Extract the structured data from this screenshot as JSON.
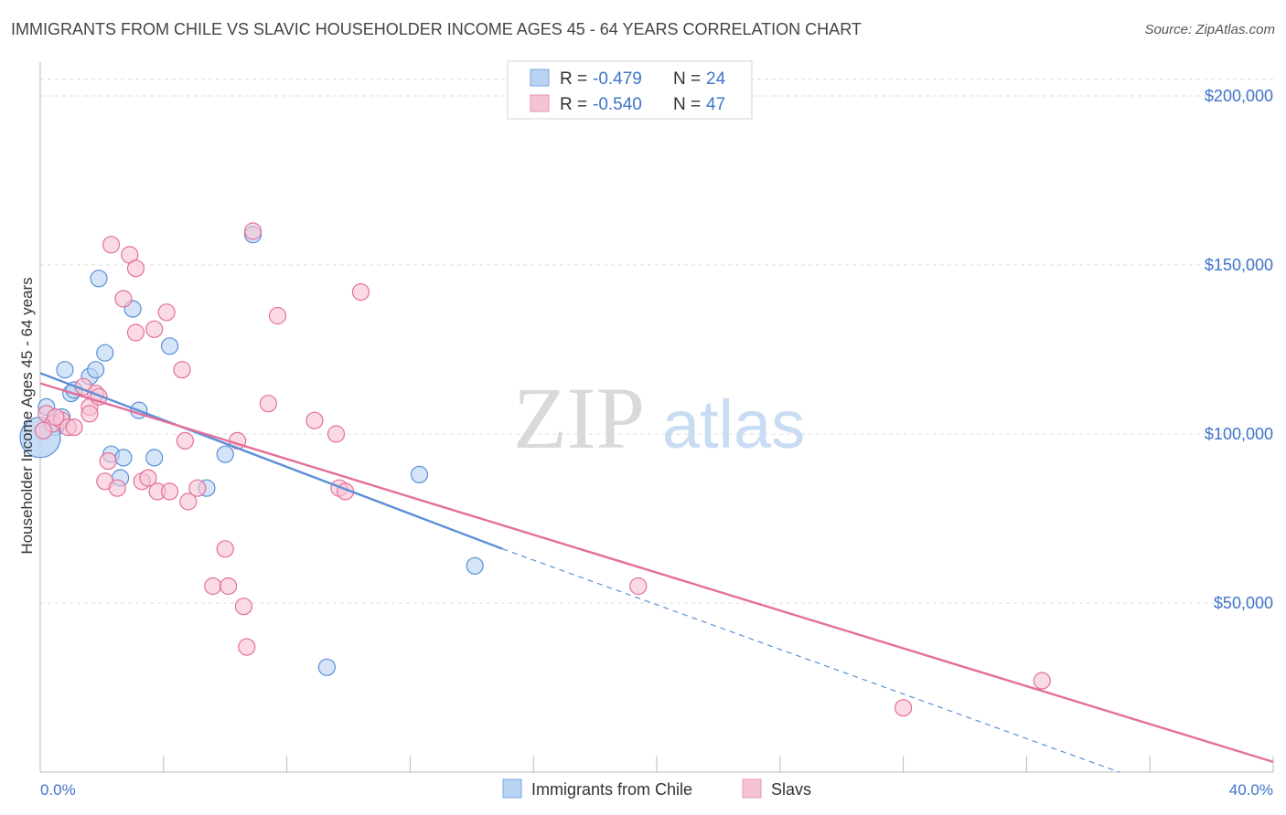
{
  "header": {
    "title": "IMMIGRANTS FROM CHILE VS SLAVIC HOUSEHOLDER INCOME AGES 45 - 64 YEARS CORRELATION CHART",
    "source": "Source: ZipAtlas.com"
  },
  "watermark": {
    "zip": "ZIP",
    "atlas": "atlas"
  },
  "chart_data": {
    "type": "scatter",
    "ylabel": "Householder Income Ages 45 - 64 years",
    "xlim": [
      0,
      40
    ],
    "ylim": [
      0,
      210000
    ],
    "x_tick_labels": {
      "min": "0.0%",
      "max": "40.0%"
    },
    "y_ticks": [
      {
        "value": 50000,
        "label": "$50,000"
      },
      {
        "value": 100000,
        "label": "$100,000"
      },
      {
        "value": 150000,
        "label": "$150,000"
      },
      {
        "value": 200000,
        "label": "$200,000"
      }
    ],
    "legend": [
      {
        "r_label": "R =",
        "r": "-0.479",
        "n_label": "N =",
        "n": "24"
      },
      {
        "r_label": "R =",
        "r": "-0.540",
        "n_label": "N =",
        "n": "47"
      }
    ],
    "series": [
      {
        "name": "Immigrants from Chile",
        "color": "#5b8fd9",
        "fill": "#b9d3f2",
        "trend": {
          "x0": 0,
          "y0": 118000,
          "x1": 15,
          "y1": 66000,
          "dash_to_x": 35,
          "dash_to_y": 0
        },
        "points": [
          [
            0.2,
            108000
          ],
          [
            0.5,
            102000
          ],
          [
            0.8,
            119000
          ],
          [
            1.0,
            112000
          ],
          [
            1.1,
            113000
          ],
          [
            1.6,
            117000
          ],
          [
            1.8,
            119000
          ],
          [
            1.9,
            146000
          ],
          [
            2.1,
            124000
          ],
          [
            2.3,
            94000
          ],
          [
            2.6,
            87000
          ],
          [
            2.7,
            93000
          ],
          [
            3.0,
            137000
          ],
          [
            3.2,
            107000
          ],
          [
            3.7,
            93000
          ],
          [
            4.2,
            126000
          ],
          [
            5.4,
            84000
          ],
          [
            6.0,
            94000
          ],
          [
            6.9,
            159000
          ],
          [
            9.3,
            31000
          ],
          [
            12.3,
            88000
          ],
          [
            14.1,
            61000
          ],
          [
            0.7,
            105000
          ],
          [
            0.0,
            99000
          ]
        ]
      },
      {
        "name": "Slavs",
        "color": "#e46f9a",
        "fill": "#f6c3d3",
        "trend": {
          "x0": 0,
          "y0": 115000,
          "x1": 40,
          "y1": 3000
        },
        "points": [
          [
            0.2,
            106000
          ],
          [
            0.4,
            103000
          ],
          [
            0.7,
            104000
          ],
          [
            0.9,
            102000
          ],
          [
            1.1,
            102000
          ],
          [
            1.4,
            114000
          ],
          [
            1.6,
            108000
          ],
          [
            1.6,
            106000
          ],
          [
            1.8,
            112000
          ],
          [
            1.9,
            111000
          ],
          [
            2.1,
            86000
          ],
          [
            2.2,
            92000
          ],
          [
            2.3,
            156000
          ],
          [
            2.5,
            84000
          ],
          [
            2.7,
            140000
          ],
          [
            2.9,
            153000
          ],
          [
            3.1,
            149000
          ],
          [
            3.1,
            130000
          ],
          [
            3.3,
            86000
          ],
          [
            3.5,
            87000
          ],
          [
            3.7,
            131000
          ],
          [
            3.8,
            83000
          ],
          [
            4.1,
            136000
          ],
          [
            4.2,
            83000
          ],
          [
            4.6,
            119000
          ],
          [
            4.7,
            98000
          ],
          [
            4.8,
            80000
          ],
          [
            5.1,
            84000
          ],
          [
            5.6,
            55000
          ],
          [
            6.0,
            66000
          ],
          [
            6.1,
            55000
          ],
          [
            6.4,
            98000
          ],
          [
            6.6,
            49000
          ],
          [
            6.7,
            37000
          ],
          [
            6.9,
            160000
          ],
          [
            7.4,
            109000
          ],
          [
            7.7,
            135000
          ],
          [
            8.9,
            104000
          ],
          [
            9.6,
            100000
          ],
          [
            9.7,
            84000
          ],
          [
            9.9,
            83000
          ],
          [
            10.4,
            142000
          ],
          [
            19.4,
            55000
          ],
          [
            28.0,
            19000
          ],
          [
            32.5,
            27000
          ],
          [
            0.1,
            101000
          ],
          [
            0.5,
            105000
          ]
        ]
      }
    ]
  }
}
